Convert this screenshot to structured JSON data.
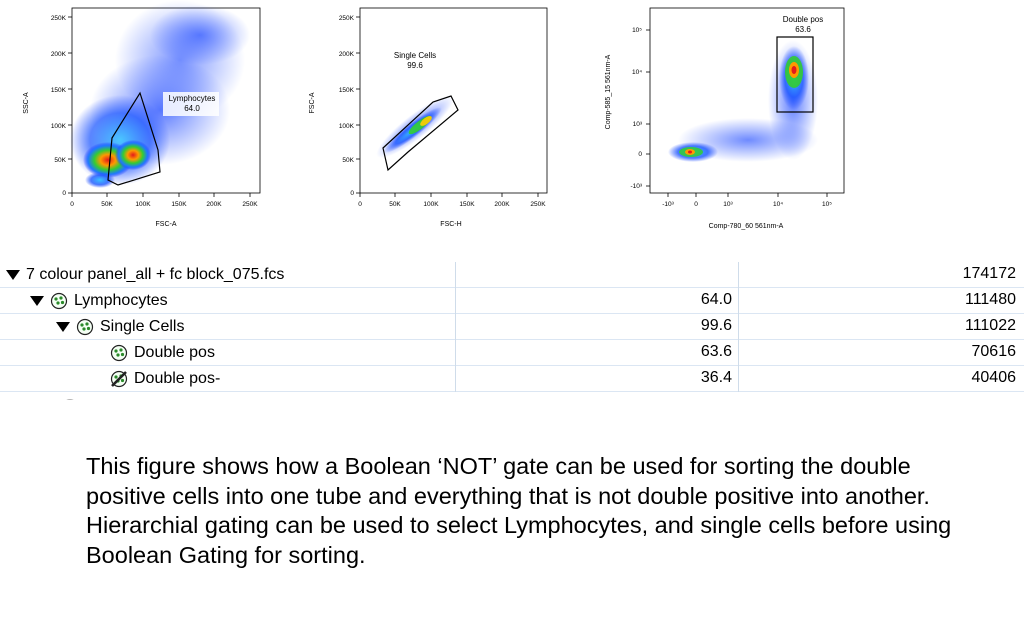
{
  "plots": [
    {
      "id": "lymphocytes-plot",
      "xlabel": "FSC-A",
      "ylabel": "SSC-A",
      "xticks": [
        "0",
        "50K",
        "100K",
        "150K",
        "200K",
        "250K"
      ],
      "yticks": [
        "0",
        "50K",
        "100K",
        "150K",
        "200K",
        "250K"
      ],
      "gate_name": "Lymphocytes",
      "gate_value": "64.0"
    },
    {
      "id": "single-cells-plot",
      "xlabel": "FSC-H",
      "ylabel": "FSC-A",
      "xticks": [
        "0",
        "50K",
        "100K",
        "150K",
        "200K",
        "250K"
      ],
      "yticks": [
        "0",
        "50K",
        "100K",
        "150K",
        "200K",
        "250K"
      ],
      "gate_name": "Single Cells",
      "gate_value": "99.6"
    },
    {
      "id": "double-pos-plot",
      "xlabel": "Comp-780_60 561nm-A",
      "ylabel": "Comp-585_15 561nm-A",
      "xticks": [
        "-10³",
        "0",
        "10³",
        "10⁴",
        "10⁵"
      ],
      "yticks": [
        "-10³",
        "0",
        "10³",
        "10⁴",
        "10⁵"
      ],
      "gate_name": "Double pos",
      "gate_value": "63.6"
    }
  ],
  "tree": {
    "rows": [
      {
        "name": "7 colour panel_all + fc block_075.fcs",
        "freq": "",
        "count": "174172",
        "expanded": true,
        "icon": "none"
      },
      {
        "name": "Lymphocytes",
        "freq": "64.0",
        "count": "111480",
        "expanded": true,
        "icon": "gate-icon"
      },
      {
        "name": "Single Cells",
        "freq": "99.6",
        "count": "111022",
        "expanded": true,
        "icon": "gate-icon"
      },
      {
        "name": "Double pos",
        "freq": "63.6",
        "count": "70616",
        "expanded": false,
        "icon": "gate-icon"
      },
      {
        "name": "Double pos-",
        "freq": "36.4",
        "count": "40406",
        "expanded": false,
        "icon": "not-gate-icon"
      }
    ]
  },
  "caption": "This figure shows how a Boolean ‘NOT’ gate can be used for sorting the double positive cells into one tube and everything that is not double positive into another.  Hierarchial gating can be used to select Lymphocytes, and single cells before using Boolean Gating for sorting."
}
